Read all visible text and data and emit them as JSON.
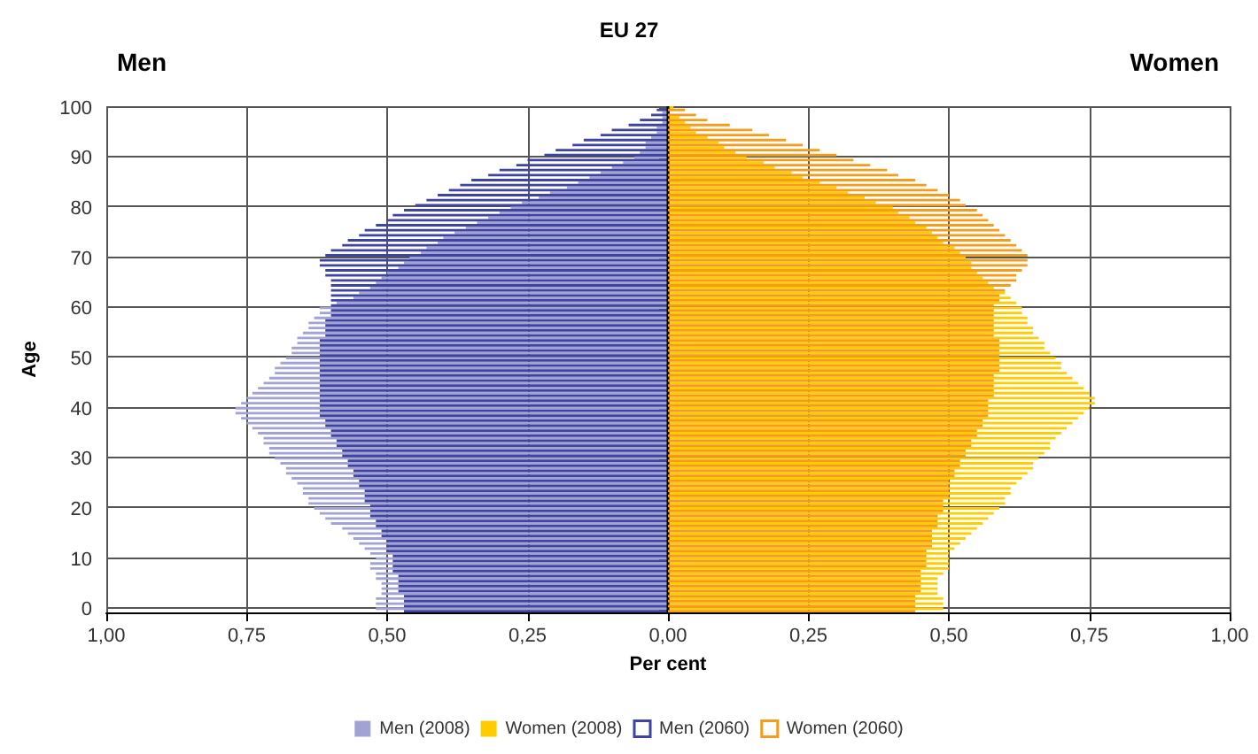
{
  "chart_data": {
    "type": "bar",
    "orientation": "horizontal",
    "title": "EU 27",
    "xlabel": "Per cent",
    "ylabel": "Age",
    "annotations": [
      "Men",
      "Women"
    ],
    "categories": [
      "100",
      null,
      null,
      null,
      null,
      null,
      null,
      null,
      null,
      null,
      "90",
      null,
      null,
      null,
      null,
      null,
      null,
      null,
      null,
      null,
      "80",
      null,
      null,
      null,
      null,
      null,
      null,
      null,
      null,
      null,
      "70",
      null,
      null,
      null,
      null,
      null,
      null,
      null,
      null,
      null,
      "60",
      null,
      null,
      null,
      null,
      null,
      null,
      null,
      null,
      null,
      "50",
      null,
      null,
      null,
      null,
      null,
      null,
      null,
      null,
      null,
      "40",
      null,
      null,
      null,
      null,
      null,
      null,
      null,
      null,
      null,
      "30",
      null,
      null,
      null,
      null,
      null,
      null,
      null,
      null,
      null,
      "20",
      null,
      null,
      null,
      null,
      null,
      null,
      null,
      null,
      null,
      "10",
      null,
      null,
      null,
      null,
      null,
      null,
      null,
      null,
      null,
      "0"
    ],
    "xlim": [
      -1,
      1
    ],
    "xticks": [
      {
        "value": -1,
        "label": "1,00"
      },
      {
        "value": -0.75,
        "label": "0,75"
      },
      {
        "value": -0.5,
        "label": "0,50"
      },
      {
        "value": -0.25,
        "label": "0,25"
      },
      {
        "value": 0,
        "label": "0,00"
      },
      {
        "value": 0.25,
        "label": "0,25"
      },
      {
        "value": 0.5,
        "label": "0,50"
      },
      {
        "value": 0.75,
        "label": "0,75"
      },
      {
        "value": 1,
        "label": "1,00"
      }
    ],
    "grid": true,
    "legend": "bottom",
    "series": [
      {
        "name": "Men (2008)",
        "color": "#a3a2d4",
        "values": [
          0,
          -0.01,
          -0.01,
          -0.01,
          -0.02,
          -0.02,
          -0.03,
          -0.04,
          -0.04,
          -0.05,
          -0.06,
          -0.08,
          -0.1,
          -0.12,
          -0.14,
          -0.16,
          -0.18,
          -0.21,
          -0.23,
          -0.26,
          -0.28,
          -0.3,
          -0.32,
          -0.34,
          -0.36,
          -0.38,
          -0.4,
          -0.41,
          -0.43,
          -0.44,
          -0.46,
          -0.47,
          -0.48,
          -0.5,
          -0.51,
          -0.52,
          -0.53,
          -0.55,
          -0.56,
          -0.59,
          -0.62,
          -0.62,
          -0.63,
          -0.64,
          -0.64,
          -0.65,
          -0.66,
          -0.66,
          -0.67,
          -0.67,
          -0.68,
          -0.69,
          -0.7,
          -0.7,
          -0.71,
          -0.72,
          -0.73,
          -0.74,
          -0.75,
          -0.76,
          -0.77,
          -0.77,
          -0.76,
          -0.75,
          -0.74,
          -0.73,
          -0.72,
          -0.72,
          -0.71,
          -0.71,
          -0.7,
          -0.69,
          -0.68,
          -0.68,
          -0.67,
          -0.66,
          -0.65,
          -0.65,
          -0.64,
          -0.64,
          -0.63,
          -0.62,
          -0.61,
          -0.6,
          -0.58,
          -0.57,
          -0.56,
          -0.55,
          -0.54,
          -0.53,
          -0.52,
          -0.53,
          -0.53,
          -0.52,
          -0.52,
          -0.51,
          -0.51,
          -0.51,
          -0.52,
          -0.52,
          -0.52
        ]
      },
      {
        "name": "Women (2008)",
        "color": "#ffcc00",
        "values": [
          0.01,
          null,
          0.02,
          0.03,
          0.04,
          0.05,
          0.07,
          0.09,
          0.1,
          0.12,
          0.14,
          0.17,
          0.19,
          0.22,
          0.24,
          0.27,
          0.3,
          0.32,
          0.35,
          0.37,
          0.4,
          0.41,
          0.43,
          0.44,
          0.46,
          0.47,
          0.48,
          0.49,
          0.51,
          0.52,
          0.53,
          0.54,
          0.54,
          0.55,
          0.56,
          0.57,
          0.58,
          0.6,
          0.61,
          0.62,
          0.63,
          0.63,
          0.64,
          0.64,
          0.65,
          0.65,
          0.66,
          0.67,
          0.67,
          0.68,
          0.69,
          0.7,
          0.7,
          0.71,
          0.72,
          0.73,
          0.74,
          0.75,
          0.76,
          0.76,
          0.75,
          0.74,
          0.73,
          0.72,
          0.71,
          0.7,
          0.69,
          0.68,
          0.68,
          0.67,
          0.66,
          0.65,
          0.65,
          0.64,
          0.63,
          0.62,
          0.61,
          0.61,
          0.6,
          0.6,
          0.59,
          0.58,
          0.57,
          0.56,
          0.55,
          0.54,
          0.53,
          0.52,
          0.51,
          0.5,
          0.5,
          0.5,
          0.5,
          0.49,
          0.48,
          0.48,
          0.48,
          0.48,
          0.49,
          0.49,
          0.49
        ]
      },
      {
        "name": "Men (2060)",
        "color": "#3f44a0",
        "values": [
          -0.02,
          -0.03,
          -0.05,
          -0.07,
          -0.1,
          -0.12,
          -0.15,
          -0.17,
          -0.2,
          -0.22,
          -0.25,
          -0.27,
          -0.3,
          -0.32,
          -0.35,
          -0.37,
          -0.39,
          -0.41,
          -0.43,
          -0.45,
          -0.47,
          -0.49,
          -0.5,
          -0.52,
          -0.54,
          -0.55,
          -0.57,
          -0.58,
          -0.6,
          -0.61,
          -0.62,
          -0.62,
          -0.61,
          -0.61,
          -0.6,
          -0.6,
          -0.6,
          -0.6,
          -0.6,
          -0.6,
          -0.6,
          -0.6,
          -0.61,
          -0.61,
          -0.61,
          -0.61,
          -0.62,
          -0.62,
          -0.62,
          -0.62,
          -0.62,
          -0.62,
          -0.62,
          -0.62,
          -0.62,
          -0.62,
          -0.62,
          -0.62,
          -0.62,
          -0.62,
          -0.62,
          -0.62,
          -0.61,
          -0.61,
          -0.6,
          -0.6,
          -0.59,
          -0.59,
          -0.58,
          -0.58,
          -0.57,
          -0.57,
          -0.56,
          -0.56,
          -0.55,
          -0.55,
          -0.54,
          -0.54,
          -0.54,
          -0.53,
          -0.53,
          -0.53,
          -0.52,
          -0.52,
          -0.51,
          -0.51,
          -0.5,
          -0.5,
          -0.5,
          -0.49,
          -0.49,
          -0.49,
          -0.49,
          -0.48,
          -0.48,
          -0.48,
          -0.48,
          -0.47,
          -0.47,
          -0.47,
          -0.47
        ]
      },
      {
        "name": "Women (2060)",
        "color": "#f39c1e",
        "values": [
          0.03,
          0.05,
          0.07,
          0.11,
          0.15,
          0.18,
          0.21,
          0.24,
          0.27,
          0.3,
          0.33,
          0.36,
          0.39,
          0.41,
          0.44,
          0.46,
          0.48,
          0.5,
          0.52,
          0.53,
          0.55,
          0.56,
          0.57,
          0.58,
          0.59,
          0.6,
          0.61,
          0.62,
          0.63,
          0.64,
          0.64,
          0.64,
          0.63,
          0.62,
          0.62,
          0.61,
          0.6,
          0.59,
          0.59,
          0.58,
          0.58,
          0.58,
          0.58,
          0.58,
          0.58,
          0.58,
          0.59,
          0.59,
          0.59,
          0.59,
          0.59,
          0.59,
          0.59,
          0.58,
          0.58,
          0.58,
          0.58,
          0.58,
          0.57,
          0.57,
          0.57,
          0.57,
          0.56,
          0.56,
          0.55,
          0.55,
          0.54,
          0.54,
          0.53,
          0.53,
          0.52,
          0.52,
          0.51,
          0.51,
          0.5,
          0.5,
          0.5,
          0.5,
          0.49,
          0.49,
          0.49,
          0.48,
          0.48,
          0.48,
          0.47,
          0.47,
          0.47,
          0.47,
          0.46,
          0.46,
          0.46,
          0.46,
          0.45,
          0.45,
          0.45,
          0.45,
          0.45,
          0.44,
          0.44,
          0.44,
          0.44
        ]
      }
    ]
  }
}
